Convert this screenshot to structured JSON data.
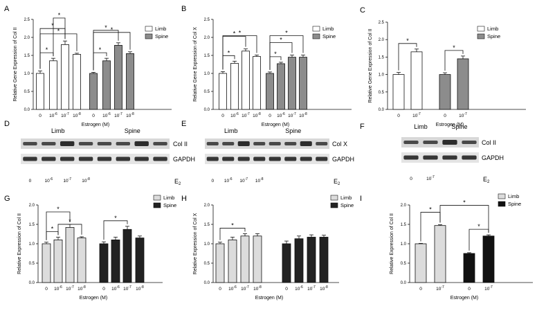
{
  "panel_letters": [
    "A",
    "B",
    "C",
    "D",
    "E",
    "F",
    "G",
    "H",
    "I"
  ],
  "chart_data": [
    {
      "id": "A",
      "type": "bar",
      "ylabel": "Relative Gene Expression of Col II",
      "xlabel": "Estrogen (M)",
      "ylim": [
        0,
        2.5
      ],
      "yticks": [
        "0.0",
        "0.5",
        "1.0",
        "1.5",
        "2.0",
        "2.5"
      ],
      "categories": [
        "0",
        "10-6",
        "10-7",
        "10-8"
      ],
      "series": [
        {
          "name": "Limb",
          "color": "#ffffff",
          "values": [
            1.0,
            1.35,
            1.8,
            1.53
          ],
          "errors": [
            0.07,
            0.07,
            0.1,
            0.03
          ]
        },
        {
          "name": "Spine",
          "color": "#8c8c8c",
          "values": [
            1.0,
            1.35,
            1.78,
            1.55
          ],
          "errors": [
            0.03,
            0.07,
            0.07,
            0.05
          ]
        }
      ],
      "significance": "*"
    },
    {
      "id": "B",
      "type": "bar",
      "ylabel": "Relative Gene Expression of Col X",
      "xlabel": "Estrogen (M)",
      "ylim": [
        0,
        2.5
      ],
      "yticks": [
        "0.0",
        "0.5",
        "1.0",
        "1.5",
        "2.0",
        "2.5"
      ],
      "categories": [
        "0",
        "10-6",
        "10-7",
        "10-8"
      ],
      "series": [
        {
          "name": "Limb",
          "color": "#ffffff",
          "values": [
            1.0,
            1.28,
            1.62,
            1.47
          ],
          "errors": [
            0.05,
            0.06,
            0.06,
            0.04
          ]
        },
        {
          "name": "Spine",
          "color": "#8c8c8c",
          "values": [
            1.0,
            1.27,
            1.45,
            1.45
          ],
          "errors": [
            0.04,
            0.04,
            0.06,
            0.06
          ]
        }
      ],
      "significance": "*"
    },
    {
      "id": "C",
      "type": "bar",
      "ylabel": "Relative Gene Expression of Col II",
      "xlabel": "Estrogen (M)",
      "ylim": [
        0,
        2.5
      ],
      "yticks": [
        "0.0",
        "0.5",
        "1.0",
        "1.5",
        "2.0",
        "2.5"
      ],
      "categories": [
        "0",
        "10-7"
      ],
      "series": [
        {
          "name": "Limb",
          "color": "#ffffff",
          "values": [
            1.0,
            1.65
          ],
          "errors": [
            0.06,
            0.08
          ]
        },
        {
          "name": "Spine",
          "color": "#8c8c8c",
          "values": [
            1.0,
            1.45
          ],
          "errors": [
            0.05,
            0.08
          ]
        }
      ],
      "significance": "*"
    },
    {
      "id": "G",
      "type": "bar",
      "ylabel": "Relative Expression of Col II",
      "xlabel": "Estrogen (M)",
      "ylim": [
        0,
        2.0
      ],
      "yticks": [
        "0.0",
        "0.5",
        "1.0",
        "1.5",
        "2.0"
      ],
      "categories": [
        "0",
        "10-6",
        "10-7",
        "10-8"
      ],
      "series": [
        {
          "name": "Limb",
          "color": "#dcdcdc",
          "values": [
            1.0,
            1.1,
            1.42,
            1.15
          ],
          "errors": [
            0.04,
            0.07,
            0.08,
            0.03
          ]
        },
        {
          "name": "Spine",
          "color": "#222222",
          "values": [
            1.0,
            1.1,
            1.37,
            1.15
          ],
          "errors": [
            0.05,
            0.07,
            0.08,
            0.05
          ]
        }
      ],
      "significance": "*"
    },
    {
      "id": "H",
      "type": "bar",
      "ylabel": "Relative Expression of Col X",
      "xlabel": "Estrogen (M)",
      "ylim": [
        0,
        2.0
      ],
      "yticks": [
        "0.0",
        "0.5",
        "1.0",
        "1.5",
        "2.0"
      ],
      "categories": [
        "0",
        "10-6",
        "10-7",
        "10-8"
      ],
      "series": [
        {
          "name": "Limb",
          "color": "#dcdcdc",
          "values": [
            1.0,
            1.1,
            1.2,
            1.2
          ],
          "errors": [
            0.04,
            0.07,
            0.06,
            0.06
          ]
        },
        {
          "name": "Spine",
          "color": "#222222",
          "values": [
            1.0,
            1.13,
            1.17,
            1.17
          ],
          "errors": [
            0.07,
            0.07,
            0.06,
            0.05
          ]
        }
      ],
      "significance": "*"
    },
    {
      "id": "I",
      "type": "bar",
      "ylabel": "Relative Expression of Col II",
      "xlabel": "Estrogen (M)",
      "ylim": [
        0,
        2.0
      ],
      "yticks": [
        "0.0",
        "0.5",
        "1.0",
        "1.5",
        "2.0"
      ],
      "categories": [
        "0",
        "10-7"
      ],
      "series": [
        {
          "name": "Limb",
          "color": "#dcdcdc",
          "values": [
            1.0,
            1.47
          ],
          "errors": [
            0.01,
            0.02
          ]
        },
        {
          "name": "Spine",
          "color": "#111111",
          "values": [
            0.75,
            1.2
          ],
          "errors": [
            0.02,
            0.03
          ]
        }
      ],
      "significance": "*"
    }
  ],
  "blots": [
    {
      "id": "D",
      "groups": [
        "Limb",
        "Spine"
      ],
      "bands": [
        "Col II",
        "GAPDH"
      ],
      "lanes": [
        "0",
        "10-6",
        "10-7",
        "10-8"
      ],
      "treatment": "E2"
    },
    {
      "id": "E",
      "groups": [
        "Limb",
        "Spine"
      ],
      "bands": [
        "Col X",
        "GAPDH"
      ],
      "lanes": [
        "0",
        "10-6",
        "10-7",
        "10-8"
      ],
      "treatment": "E2"
    },
    {
      "id": "F",
      "groups": [
        "Limb",
        "Spine"
      ],
      "bands": [
        "Col II",
        "GAPDH"
      ],
      "lanes": [
        "0",
        "10-7"
      ],
      "treatment": "E2"
    }
  ]
}
